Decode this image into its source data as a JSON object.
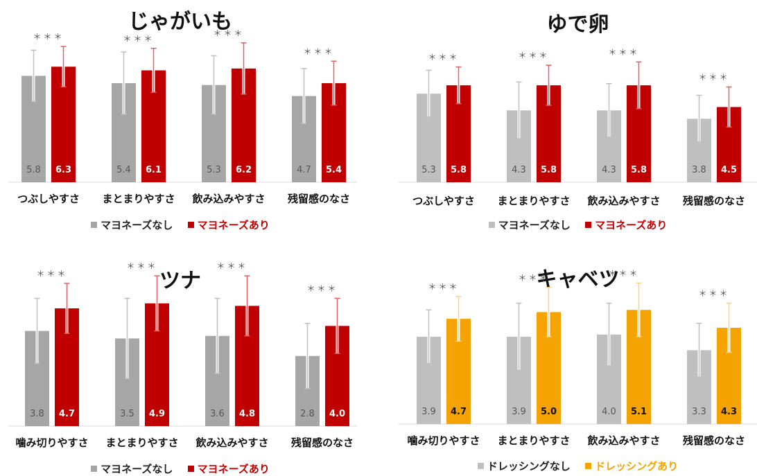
{
  "chart_data": [
    {
      "type": "bar",
      "title": "じゃがいも",
      "categories": [
        "つぶしやすさ",
        "まとまりやすさ",
        "飲み込みやすさ",
        "残留感のなさ"
      ],
      "series": [
        {
          "name": "マヨネーズなし",
          "color": "#a6a6a6",
          "values": [
            5.8,
            5.4,
            5.3,
            4.7
          ],
          "errors": [
            1.4,
            1.7,
            1.6,
            1.5
          ]
        },
        {
          "name": "マヨネーズあり",
          "color": "#c00000",
          "values": [
            6.3,
            6.1,
            6.2,
            5.4
          ],
          "errors": [
            1.1,
            1.2,
            1.4,
            1.2
          ]
        }
      ],
      "value_labels": [
        [
          "5.8",
          "5.4",
          "5.3",
          "4.7"
        ],
        [
          "6.3",
          "6.1",
          "6.2",
          "5.4"
        ]
      ],
      "significance": [
        "＊＊＊",
        "＊＊＊",
        "＊＊＊",
        "＊＊＊"
      ],
      "ylim": [
        0,
        8.5
      ]
    },
    {
      "type": "bar",
      "title": "ゆで卵",
      "categories": [
        "つぶしやすさ",
        "まとまりやすさ",
        "飲み込みやすさ",
        "残留感のなさ"
      ],
      "series": [
        {
          "name": "マヨネーズなし",
          "color": "#bfbfbf",
          "values": [
            5.3,
            4.3,
            4.3,
            3.8
          ],
          "errors": [
            1.4,
            1.7,
            1.6,
            1.4
          ]
        },
        {
          "name": "マヨネーズあり",
          "color": "#c00000",
          "values": [
            5.8,
            5.8,
            5.8,
            4.5
          ],
          "errors": [
            1.1,
            1.2,
            1.4,
            1.2
          ]
        }
      ],
      "value_labels": [
        [
          "5.3",
          "4.3",
          "4.3",
          "3.8"
        ],
        [
          "5.8",
          "5.8",
          "5.8",
          "4.5"
        ]
      ],
      "significance": [
        "＊＊＊",
        "＊＊＊",
        "＊＊＊",
        "＊＊＊"
      ],
      "ylim": [
        0,
        8.5
      ]
    },
    {
      "type": "bar",
      "title": "ツナ",
      "categories": [
        "噛み切りやすさ",
        "まとまりやすさ",
        "飲み込みやすさ",
        "残留感のなさ"
      ],
      "series": [
        {
          "name": "マヨネーズなし",
          "color": "#a6a6a6",
          "values": [
            3.8,
            3.5,
            3.6,
            2.8
          ],
          "errors": [
            1.3,
            1.6,
            1.5,
            1.3
          ]
        },
        {
          "name": "マヨネーズあり",
          "color": "#c00000",
          "values": [
            4.7,
            4.9,
            4.8,
            4.0
          ],
          "errors": [
            1.0,
            1.1,
            1.2,
            1.1
          ]
        }
      ],
      "value_labels": [
        [
          "3.8",
          "3.5",
          "3.6",
          "2.8"
        ],
        [
          "4.7",
          "4.9",
          "4.8",
          "4.0"
        ]
      ],
      "significance": [
        "＊＊＊",
        "＊＊＊",
        "＊＊＊",
        "＊＊＊"
      ],
      "ylim": [
        0,
        6.5
      ]
    },
    {
      "type": "bar",
      "title": "キャベツ",
      "categories": [
        "噛み切りやすさ",
        "まとまりやすさ",
        "飲み込みやすさ",
        "残留感のなさ"
      ],
      "series": [
        {
          "name": "ドレッシングなし",
          "color": "#bfbfbf",
          "values": [
            3.9,
            3.9,
            4.0,
            3.3
          ],
          "errors": [
            1.2,
            1.5,
            1.4,
            1.2
          ]
        },
        {
          "name": "ドレッシングあり",
          "color": "#f5a300",
          "values": [
            4.7,
            5.0,
            5.1,
            4.3
          ],
          "errors": [
            1.0,
            1.1,
            1.2,
            1.1
          ]
        }
      ],
      "value_labels": [
        [
          "3.9",
          "3.9",
          "4.0",
          "3.3"
        ],
        [
          "4.7",
          "5.0",
          "5.1",
          "4.3"
        ]
      ],
      "significance": [
        "＊＊＊",
        "＊＊＊",
        "＊＊＊",
        "＊＊＊"
      ],
      "ylim": [
        0,
        6.5
      ]
    }
  ]
}
